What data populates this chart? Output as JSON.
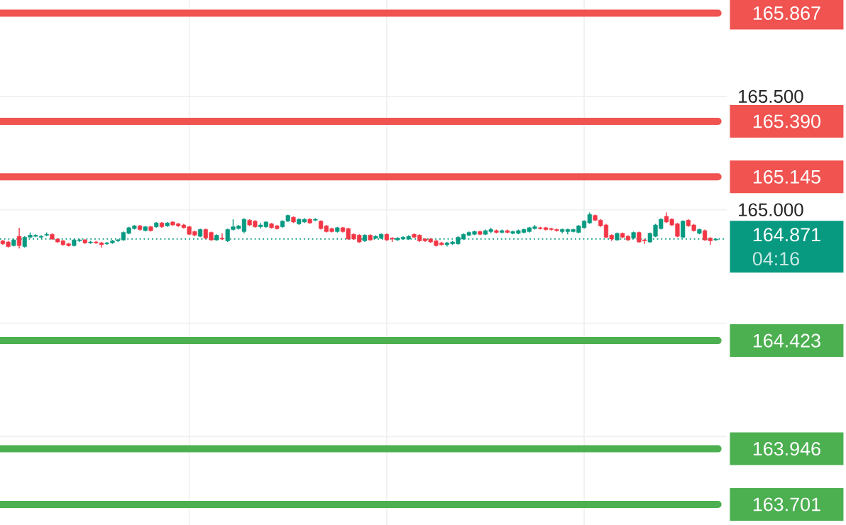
{
  "chart_data": {
    "type": "candlestick",
    "categories": [
      null,
      null,
      null,
      null,
      null,
      null,
      null,
      null,
      null,
      null,
      null,
      null,
      null,
      null,
      null,
      null,
      null,
      null,
      null,
      null,
      null,
      null,
      null,
      null,
      null,
      null,
      null,
      null,
      null,
      null,
      null,
      null,
      null,
      null,
      null,
      null,
      null,
      null,
      null,
      null,
      null,
      null,
      null,
      null,
      null,
      null,
      null,
      null,
      null,
      null,
      null,
      null,
      null,
      null,
      null,
      null,
      null,
      null,
      null,
      null,
      null,
      null,
      null,
      null,
      null,
      null,
      null,
      null,
      null,
      null,
      null,
      null,
      null,
      null,
      null,
      null,
      null,
      null,
      null,
      null,
      null,
      null,
      null,
      null,
      null,
      null,
      null,
      null,
      null,
      null,
      null,
      null,
      null,
      null,
      null,
      null,
      null,
      null,
      null,
      null,
      null,
      null,
      null,
      null,
      null,
      null,
      null,
      null,
      null,
      null,
      null,
      null,
      null,
      null,
      null,
      null,
      null,
      null,
      null,
      null,
      null,
      null,
      null,
      null,
      null,
      null,
      null,
      null,
      null,
      null,
      null
    ],
    "ohlc": [
      [
        164.863,
        164.867,
        164.846,
        164.85
      ],
      [
        164.858,
        164.863,
        164.833,
        164.838
      ],
      [
        164.842,
        164.871,
        164.838,
        164.867
      ],
      [
        164.883,
        164.921,
        164.829,
        164.842
      ],
      [
        164.838,
        164.883,
        164.833,
        164.879
      ],
      [
        164.879,
        164.9,
        164.875,
        164.888
      ],
      [
        164.883,
        164.892,
        164.879,
        164.888
      ],
      [
        164.879,
        164.888,
        164.875,
        164.883
      ],
      [
        164.888,
        164.9,
        164.883,
        164.892
      ],
      [
        164.892,
        164.896,
        164.867,
        164.871
      ],
      [
        164.871,
        164.875,
        164.854,
        164.858
      ],
      [
        164.863,
        164.867,
        164.842,
        164.846
      ],
      [
        164.85,
        164.854,
        164.838,
        164.842
      ],
      [
        164.842,
        164.871,
        164.838,
        164.867
      ],
      [
        164.863,
        164.871,
        164.858,
        164.867
      ],
      [
        164.867,
        164.871,
        164.85,
        164.854
      ],
      [
        164.854,
        164.863,
        164.85,
        164.858
      ],
      [
        164.858,
        164.863,
        164.85,
        164.854
      ],
      [
        164.854,
        164.858,
        164.833,
        164.846
      ],
      [
        164.85,
        164.858,
        164.846,
        164.854
      ],
      [
        164.854,
        164.867,
        164.85,
        164.863
      ],
      [
        164.863,
        164.871,
        164.858,
        164.867
      ],
      [
        164.867,
        164.904,
        164.863,
        164.9
      ],
      [
        164.896,
        164.925,
        164.892,
        164.921
      ],
      [
        164.917,
        164.933,
        164.913,
        164.929
      ],
      [
        164.929,
        164.933,
        164.908,
        164.913
      ],
      [
        164.908,
        164.929,
        164.904,
        164.925
      ],
      [
        164.925,
        164.929,
        164.904,
        164.908
      ],
      [
        164.925,
        164.946,
        164.921,
        164.942
      ],
      [
        164.942,
        164.946,
        164.921,
        164.925
      ],
      [
        164.929,
        164.946,
        164.925,
        164.942
      ],
      [
        164.946,
        164.95,
        164.929,
        164.933
      ],
      [
        164.938,
        164.942,
        164.925,
        164.929
      ],
      [
        164.933,
        164.938,
        164.917,
        164.921
      ],
      [
        164.925,
        164.929,
        164.888,
        164.892
      ],
      [
        164.904,
        164.908,
        164.883,
        164.888
      ],
      [
        164.883,
        164.917,
        164.879,
        164.913
      ],
      [
        164.913,
        164.917,
        164.871,
        164.875
      ],
      [
        164.9,
        164.904,
        164.863,
        164.867
      ],
      [
        164.867,
        164.892,
        164.863,
        164.888
      ],
      [
        164.875,
        164.896,
        164.867,
        164.871
      ],
      [
        164.863,
        164.917,
        164.858,
        164.913
      ],
      [
        164.913,
        164.958,
        164.908,
        164.925
      ],
      [
        164.917,
        164.933,
        164.913,
        164.929
      ],
      [
        164.904,
        164.963,
        164.896,
        164.958
      ],
      [
        164.954,
        164.958,
        164.929,
        164.933
      ],
      [
        164.95,
        164.954,
        164.921,
        164.925
      ],
      [
        164.925,
        164.942,
        164.917,
        164.933
      ],
      [
        164.925,
        164.95,
        164.921,
        164.946
      ],
      [
        164.938,
        164.942,
        164.917,
        164.921
      ],
      [
        164.929,
        164.933,
        164.913,
        164.917
      ],
      [
        164.925,
        164.954,
        164.921,
        164.95
      ],
      [
        164.95,
        164.979,
        164.946,
        164.975
      ],
      [
        164.967,
        164.971,
        164.942,
        164.946
      ],
      [
        164.938,
        164.963,
        164.933,
        164.958
      ],
      [
        164.946,
        164.963,
        164.942,
        164.958
      ],
      [
        164.958,
        164.963,
        164.938,
        164.942
      ],
      [
        164.954,
        164.963,
        164.95,
        164.958
      ],
      [
        164.95,
        164.954,
        164.913,
        164.917
      ],
      [
        164.929,
        164.933,
        164.9,
        164.904
      ],
      [
        164.917,
        164.921,
        164.9,
        164.904
      ],
      [
        164.904,
        164.925,
        164.9,
        164.921
      ],
      [
        164.921,
        164.925,
        164.9,
        164.904
      ],
      [
        164.917,
        164.921,
        164.867,
        164.871
      ],
      [
        164.892,
        164.896,
        164.867,
        164.871
      ],
      [
        164.888,
        164.892,
        164.854,
        164.858
      ],
      [
        164.863,
        164.892,
        164.858,
        164.888
      ],
      [
        164.888,
        164.892,
        164.863,
        164.867
      ],
      [
        164.875,
        164.888,
        164.871,
        164.883
      ],
      [
        164.875,
        164.896,
        164.871,
        164.892
      ],
      [
        164.892,
        164.896,
        164.863,
        164.867
      ],
      [
        164.875,
        164.879,
        164.858,
        164.871
      ],
      [
        164.867,
        164.879,
        164.863,
        164.875
      ],
      [
        164.871,
        164.883,
        164.867,
        164.879
      ],
      [
        164.871,
        164.888,
        164.867,
        164.883
      ],
      [
        164.892,
        164.896,
        164.875,
        164.879
      ],
      [
        164.888,
        164.892,
        164.858,
        164.863
      ],
      [
        164.871,
        164.875,
        164.858,
        164.863
      ],
      [
        164.871,
        164.875,
        164.854,
        164.858
      ],
      [
        164.863,
        164.867,
        164.838,
        164.842
      ],
      [
        164.854,
        164.858,
        164.842,
        164.846
      ],
      [
        164.846,
        164.858,
        164.838,
        164.854
      ],
      [
        164.85,
        164.863,
        164.846,
        164.858
      ],
      [
        164.85,
        164.883,
        164.846,
        164.879
      ],
      [
        164.871,
        164.896,
        164.867,
        164.892
      ],
      [
        164.888,
        164.904,
        164.883,
        164.9
      ],
      [
        164.892,
        164.908,
        164.888,
        164.904
      ],
      [
        164.904,
        164.908,
        164.888,
        164.892
      ],
      [
        164.892,
        164.913,
        164.888,
        164.908
      ],
      [
        164.904,
        164.921,
        164.896,
        164.913
      ],
      [
        164.908,
        164.913,
        164.896,
        164.9
      ],
      [
        164.9,
        164.913,
        164.896,
        164.908
      ],
      [
        164.908,
        164.913,
        164.896,
        164.9
      ],
      [
        164.896,
        164.908,
        164.892,
        164.904
      ],
      [
        164.896,
        164.913,
        164.892,
        164.908
      ],
      [
        164.9,
        164.917,
        164.896,
        164.913
      ],
      [
        164.904,
        164.925,
        164.9,
        164.921
      ],
      [
        164.917,
        164.933,
        164.913,
        164.925
      ],
      [
        164.921,
        164.925,
        164.913,
        164.917
      ],
      [
        164.921,
        164.925,
        164.908,
        164.913
      ],
      [
        164.917,
        164.921,
        164.908,
        164.913
      ],
      [
        164.913,
        164.917,
        164.904,
        164.908
      ],
      [
        164.904,
        164.917,
        164.896,
        164.913
      ],
      [
        164.904,
        164.917,
        164.892,
        164.913
      ],
      [
        164.904,
        164.917,
        164.9,
        164.913
      ],
      [
        164.9,
        164.933,
        164.896,
        164.929
      ],
      [
        164.921,
        164.954,
        164.917,
        164.95
      ],
      [
        164.942,
        164.988,
        164.938,
        164.979
      ],
      [
        164.975,
        164.979,
        164.95,
        164.954
      ],
      [
        164.954,
        164.958,
        164.925,
        164.929
      ],
      [
        164.933,
        164.938,
        164.875,
        164.879
      ],
      [
        164.888,
        164.892,
        164.863,
        164.871
      ],
      [
        164.867,
        164.9,
        164.863,
        164.896
      ],
      [
        164.896,
        164.9,
        164.875,
        164.879
      ],
      [
        164.883,
        164.888,
        164.863,
        164.867
      ],
      [
        164.875,
        164.904,
        164.871,
        164.9
      ],
      [
        164.9,
        164.904,
        164.854,
        164.858
      ],
      [
        164.867,
        164.871,
        164.85,
        164.863
      ],
      [
        164.858,
        164.9,
        164.854,
        164.896
      ],
      [
        164.883,
        164.938,
        164.879,
        164.933
      ],
      [
        164.917,
        164.963,
        164.913,
        164.958
      ],
      [
        164.971,
        164.988,
        164.942,
        164.946
      ],
      [
        164.958,
        164.963,
        164.929,
        164.933
      ],
      [
        164.938,
        164.942,
        164.879,
        164.883
      ],
      [
        164.879,
        164.954,
        164.875,
        164.95
      ],
      [
        164.954,
        164.958,
        164.925,
        164.929
      ],
      [
        164.933,
        164.938,
        164.904,
        164.908
      ],
      [
        164.896,
        164.917,
        164.892,
        164.913
      ],
      [
        164.908,
        164.913,
        164.863,
        164.867
      ],
      [
        164.875,
        164.879,
        164.846,
        164.863
      ],
      [
        164.867,
        164.875,
        164.863,
        164.871
      ]
    ],
    "ylim": [
      163.61,
      165.925
    ],
    "yticks": [
      {
        "value": 165.5,
        "label": "165.500"
      },
      {
        "value": 165.0,
        "label": "165.000"
      },
      {
        "value": 164.5,
        "label": null
      },
      {
        "value": 164.0,
        "label": null
      }
    ],
    "grid": true,
    "tick_labels": "y",
    "ref_lines": [
      {
        "axis": "y",
        "value": 165.867,
        "label": "165.867",
        "color": "#f05350"
      },
      {
        "axis": "y",
        "value": 165.39,
        "label": "165.390",
        "color": "#f05350"
      },
      {
        "axis": "y",
        "value": 165.145,
        "label": "165.145",
        "color": "#f05350"
      },
      {
        "axis": "y",
        "value": 164.871,
        "label": "164.871",
        "color": "#089981",
        "line_style": "dotted"
      },
      {
        "axis": "y",
        "value": 164.423,
        "label": "164.423",
        "color": "#4caf50"
      },
      {
        "axis": "y",
        "value": 163.946,
        "label": "163.946",
        "color": "#4caf50"
      },
      {
        "axis": "y",
        "value": 163.701,
        "label": "163.701",
        "color": "#4caf50"
      }
    ],
    "annotations": [
      "04:16"
    ]
  }
}
